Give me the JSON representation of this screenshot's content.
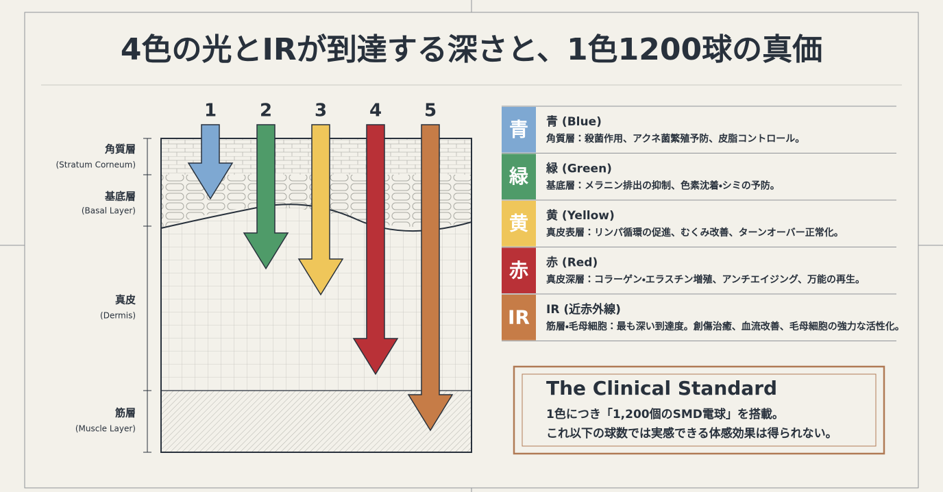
{
  "title": "4色の光とIRが到達する深さと、1色1200球の真価",
  "diagram": {
    "arrows": [
      "1",
      "2",
      "3",
      "4",
      "5"
    ],
    "layers": [
      {
        "name": "角質層",
        "english": "(Stratum Corneum)"
      },
      {
        "name": "基底層",
        "english": "(Basal Layer)"
      },
      {
        "name": "真皮",
        "english": "(Dermis)"
      },
      {
        "name": "筋層",
        "english": "(Muscle Layer)"
      }
    ]
  },
  "legend": [
    {
      "badge": "青",
      "name": "青 (Blue)",
      "description": "角質層：殺菌作用、アクネ菌繁殖予防、皮脂コントロール。",
      "color": "#7ea8d2"
    },
    {
      "badge": "緑",
      "name": "緑 (Green)",
      "description": "基底層：メラニン排出の抑制、色素沈着・シミの予防。",
      "color": "#4f9b69"
    },
    {
      "badge": "黄",
      "name": "黄 (Yellow)",
      "description": "真皮表層：リンパ循環の促進、むくみ改善、ターンオーバー正常化。",
      "color": "#efc65a"
    },
    {
      "badge": "赤",
      "name": "赤 (Red)",
      "description": "真皮深層：コラーゲン・エラスチン増殖、アンチエイジング、万能の再生。",
      "color": "#b93137"
    },
    {
      "badge": "IR",
      "name": "IR (近赤外線)",
      "description": "筋層・毛母細胞：最も深い到達度。創傷治癒、血流改善、毛母細胞の強力な活性化。",
      "color": "#c67c47"
    }
  ],
  "callout": {
    "heading": "The Clinical Standard",
    "lines": [
      "1色につき「1,200個のSMD電球」を搭載。",
      "これ以下の球数では実感できる体感効果は得られない。"
    ]
  }
}
